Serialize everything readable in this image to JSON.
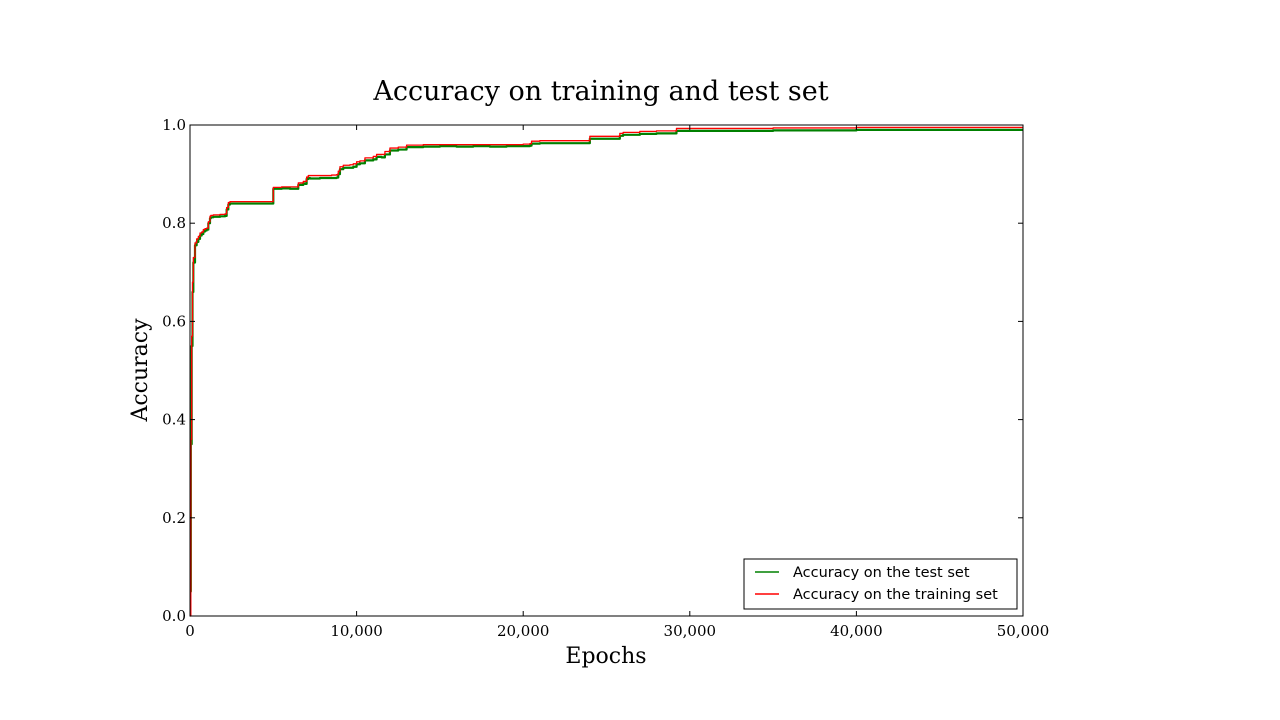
{
  "chart_data": {
    "type": "line",
    "title": "Accuracy on training and test set",
    "xlabel": "Epochs",
    "ylabel": "Accuracy",
    "xlim": [
      0,
      50000
    ],
    "ylim": [
      0.0,
      1.0
    ],
    "xticks": [
      0,
      10000,
      20000,
      30000,
      40000,
      50000
    ],
    "xtick_labels": [
      "0",
      "10,000",
      "20,000",
      "30,000",
      "40,000",
      "50,000"
    ],
    "yticks": [
      0.0,
      0.2,
      0.4,
      0.6,
      0.8,
      1.0
    ],
    "ytick_labels": [
      "0.0",
      "0.2",
      "0.4",
      "0.6",
      "0.8",
      "1.0"
    ],
    "grid": false,
    "legend_position": "bottom-right",
    "series": [
      {
        "name": "Accuracy on the test set",
        "color": "#008000",
        "x": [
          0,
          50,
          100,
          150,
          200,
          300,
          400,
          500,
          600,
          700,
          800,
          900,
          1000,
          1100,
          1200,
          1250,
          1400,
          1800,
          2100,
          2200,
          2300,
          2400,
          2500,
          3000,
          4000,
          4900,
          5000,
          5500,
          6000,
          6400,
          6500,
          6800,
          6900,
          7000,
          7100,
          7200,
          7800,
          8500,
          8800,
          8900,
          9000,
          9200,
          9400,
          9600,
          9800,
          10000,
          10200,
          10500,
          11000,
          11200,
          11500,
          11700,
          12000,
          12500,
          12800,
          13000,
          14000,
          15000,
          16000,
          17000,
          18000,
          19000,
          20000,
          20400,
          20500,
          21000,
          22000,
          23000,
          23900,
          24000,
          25000,
          25500,
          25800,
          26000,
          26800,
          27000,
          28000,
          29000,
          29200,
          30000,
          35000,
          40000,
          45000,
          50000
        ],
        "y": [
          0.05,
          0.35,
          0.55,
          0.66,
          0.72,
          0.755,
          0.762,
          0.768,
          0.775,
          0.778,
          0.783,
          0.785,
          0.787,
          0.8,
          0.81,
          0.812,
          0.813,
          0.814,
          0.815,
          0.828,
          0.838,
          0.84,
          0.84,
          0.84,
          0.84,
          0.84,
          0.87,
          0.871,
          0.87,
          0.87,
          0.878,
          0.881,
          0.88,
          0.89,
          0.892,
          0.891,
          0.892,
          0.892,
          0.893,
          0.9,
          0.91,
          0.913,
          0.913,
          0.913,
          0.915,
          0.92,
          0.922,
          0.928,
          0.93,
          0.935,
          0.934,
          0.94,
          0.948,
          0.95,
          0.95,
          0.955,
          0.956,
          0.957,
          0.956,
          0.957,
          0.956,
          0.957,
          0.957,
          0.958,
          0.962,
          0.963,
          0.963,
          0.963,
          0.963,
          0.972,
          0.972,
          0.972,
          0.978,
          0.98,
          0.98,
          0.982,
          0.983,
          0.983,
          0.988,
          0.988,
          0.989,
          0.99,
          0.99,
          0.99
        ]
      },
      {
        "name": "Accuracy on the training set",
        "color": "#ff0000",
        "x": [
          0,
          50,
          100,
          150,
          200,
          300,
          400,
          500,
          600,
          700,
          800,
          900,
          1000,
          1100,
          1200,
          1250,
          1400,
          1800,
          2100,
          2200,
          2300,
          2400,
          2500,
          3000,
          4000,
          4900,
          5000,
          5500,
          6000,
          6400,
          6500,
          6800,
          6900,
          7000,
          7100,
          7200,
          7800,
          8500,
          8800,
          8900,
          9000,
          9200,
          9400,
          9600,
          9800,
          10000,
          10200,
          10500,
          11000,
          11200,
          11500,
          11700,
          12000,
          12500,
          12800,
          13000,
          14000,
          15000,
          16000,
          17000,
          18000,
          19000,
          20000,
          20400,
          20500,
          21000,
          22000,
          23000,
          23900,
          24000,
          25000,
          25500,
          25800,
          26000,
          26800,
          27000,
          28000,
          29000,
          29200,
          30000,
          35000,
          40000,
          45000,
          50000
        ],
        "y": [
          0.0,
          0.36,
          0.57,
          0.68,
          0.73,
          0.76,
          0.768,
          0.773,
          0.78,
          0.782,
          0.787,
          0.789,
          0.79,
          0.803,
          0.814,
          0.816,
          0.817,
          0.818,
          0.819,
          0.832,
          0.842,
          0.844,
          0.844,
          0.844,
          0.844,
          0.844,
          0.873,
          0.874,
          0.874,
          0.874,
          0.882,
          0.885,
          0.885,
          0.894,
          0.897,
          0.897,
          0.897,
          0.898,
          0.899,
          0.906,
          0.915,
          0.918,
          0.918,
          0.919,
          0.921,
          0.925,
          0.927,
          0.933,
          0.936,
          0.94,
          0.94,
          0.946,
          0.953,
          0.955,
          0.955,
          0.959,
          0.96,
          0.96,
          0.96,
          0.96,
          0.96,
          0.96,
          0.961,
          0.962,
          0.967,
          0.968,
          0.968,
          0.968,
          0.968,
          0.977,
          0.977,
          0.977,
          0.983,
          0.985,
          0.985,
          0.987,
          0.988,
          0.988,
          0.993,
          0.993,
          0.994,
          0.995,
          0.995,
          0.995
        ]
      }
    ]
  }
}
